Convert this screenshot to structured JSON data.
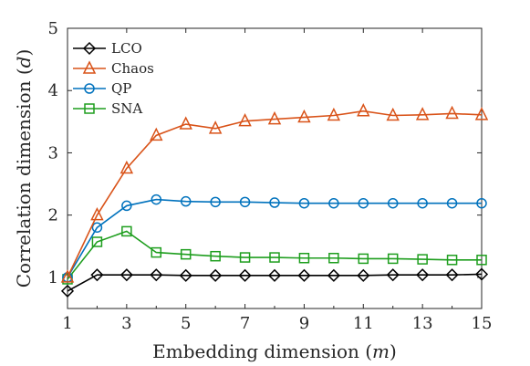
{
  "chart_data": {
    "type": "line",
    "xlabel": "Embedding dimension (m)",
    "ylabel": "Correlation dimension (d)",
    "xlim": [
      1,
      15
    ],
    "ylim": [
      0.5,
      5
    ],
    "xticks": [
      1,
      3,
      5,
      7,
      9,
      11,
      13,
      15
    ],
    "yticks": [
      1,
      2,
      3,
      4,
      5
    ],
    "grid": false,
    "legend_position": "top-left",
    "x": [
      1,
      2,
      3,
      4,
      5,
      6,
      7,
      8,
      9,
      10,
      11,
      12,
      13,
      14,
      15
    ],
    "series": [
      {
        "name": "LCO",
        "color": "#000000",
        "marker": "diamond",
        "values": [
          0.78,
          1.04,
          1.04,
          1.04,
          1.03,
          1.03,
          1.03,
          1.03,
          1.03,
          1.03,
          1.03,
          1.04,
          1.04,
          1.04,
          1.05
        ]
      },
      {
        "name": "Chaos",
        "color": "#d95319",
        "marker": "triangle",
        "values": [
          1.0,
          2.0,
          2.75,
          3.28,
          3.46,
          3.39,
          3.51,
          3.54,
          3.57,
          3.6,
          3.67,
          3.6,
          3.61,
          3.63,
          3.61
        ]
      },
      {
        "name": "QP",
        "color": "#0072bd",
        "marker": "circle",
        "values": [
          1.0,
          1.8,
          2.15,
          2.25,
          2.22,
          2.21,
          2.21,
          2.2,
          2.19,
          2.19,
          2.19,
          2.19,
          2.19,
          2.19,
          2.19
        ]
      },
      {
        "name": "SNA",
        "color": "#1e9e1e",
        "marker": "square",
        "values": [
          0.97,
          1.57,
          1.74,
          1.4,
          1.37,
          1.34,
          1.32,
          1.32,
          1.31,
          1.31,
          1.3,
          1.3,
          1.29,
          1.28,
          1.28
        ]
      }
    ]
  }
}
